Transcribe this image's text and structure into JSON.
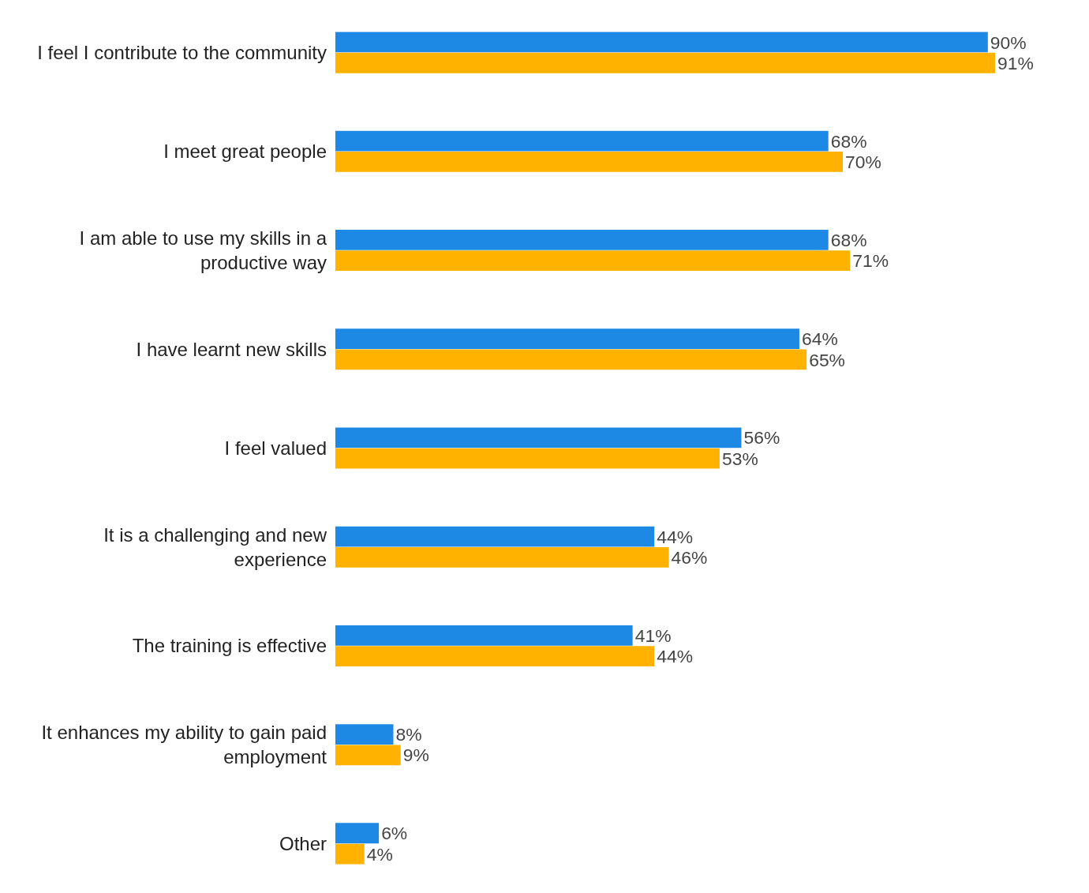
{
  "chart_data": {
    "type": "bar",
    "orientation": "horizontal",
    "categories": [
      "I feel I contribute to the community",
      "I meet great people",
      "I am able to use my skills in a productive way",
      "I have learnt new skills",
      "I feel valued",
      "It is a challenging and new experience",
      "The training is effective",
      "It enhances my ability to gain paid employment",
      "Other"
    ],
    "series": [
      {
        "color": "#1e88e5",
        "values": [
          90,
          68,
          68,
          64,
          56,
          44,
          41,
          8,
          6
        ],
        "value_labels": [
          "90%",
          "68%",
          "68%",
          "64%",
          "56%",
          "44%",
          "41%",
          "8%",
          "6%"
        ]
      },
      {
        "color": "#ffb300",
        "values": [
          91,
          70,
          71,
          65,
          53,
          46,
          44,
          9,
          4
        ],
        "value_labels": [
          "91%",
          "70%",
          "71%",
          "65%",
          "53%",
          "46%",
          "44%",
          "9%",
          "4%"
        ]
      }
    ]
  }
}
